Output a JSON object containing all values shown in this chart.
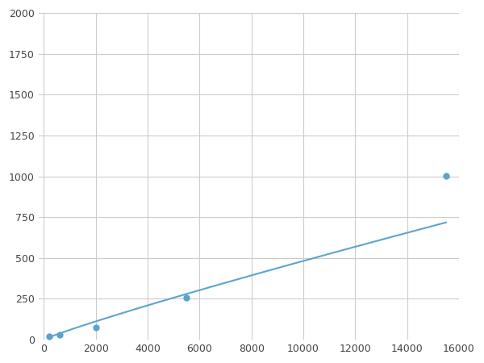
{
  "x": [
    200,
    600,
    2000,
    5500,
    15500
  ],
  "y": [
    20,
    30,
    75,
    255,
    1005
  ],
  "line_color": "#5BA4CF",
  "marker_color": "#5BA4CF",
  "marker_size": 5,
  "linewidth": 1.5,
  "xlim": [
    -200,
    16000
  ],
  "ylim": [
    0,
    2000
  ],
  "xticks": [
    0,
    2000,
    4000,
    6000,
    8000,
    10000,
    12000,
    14000,
    16000
  ],
  "yticks": [
    0,
    250,
    500,
    750,
    1000,
    1250,
    1500,
    1750,
    2000
  ],
  "grid_color": "#cccccc",
  "bg_color": "#ffffff",
  "fig_bg_color": "#ffffff"
}
